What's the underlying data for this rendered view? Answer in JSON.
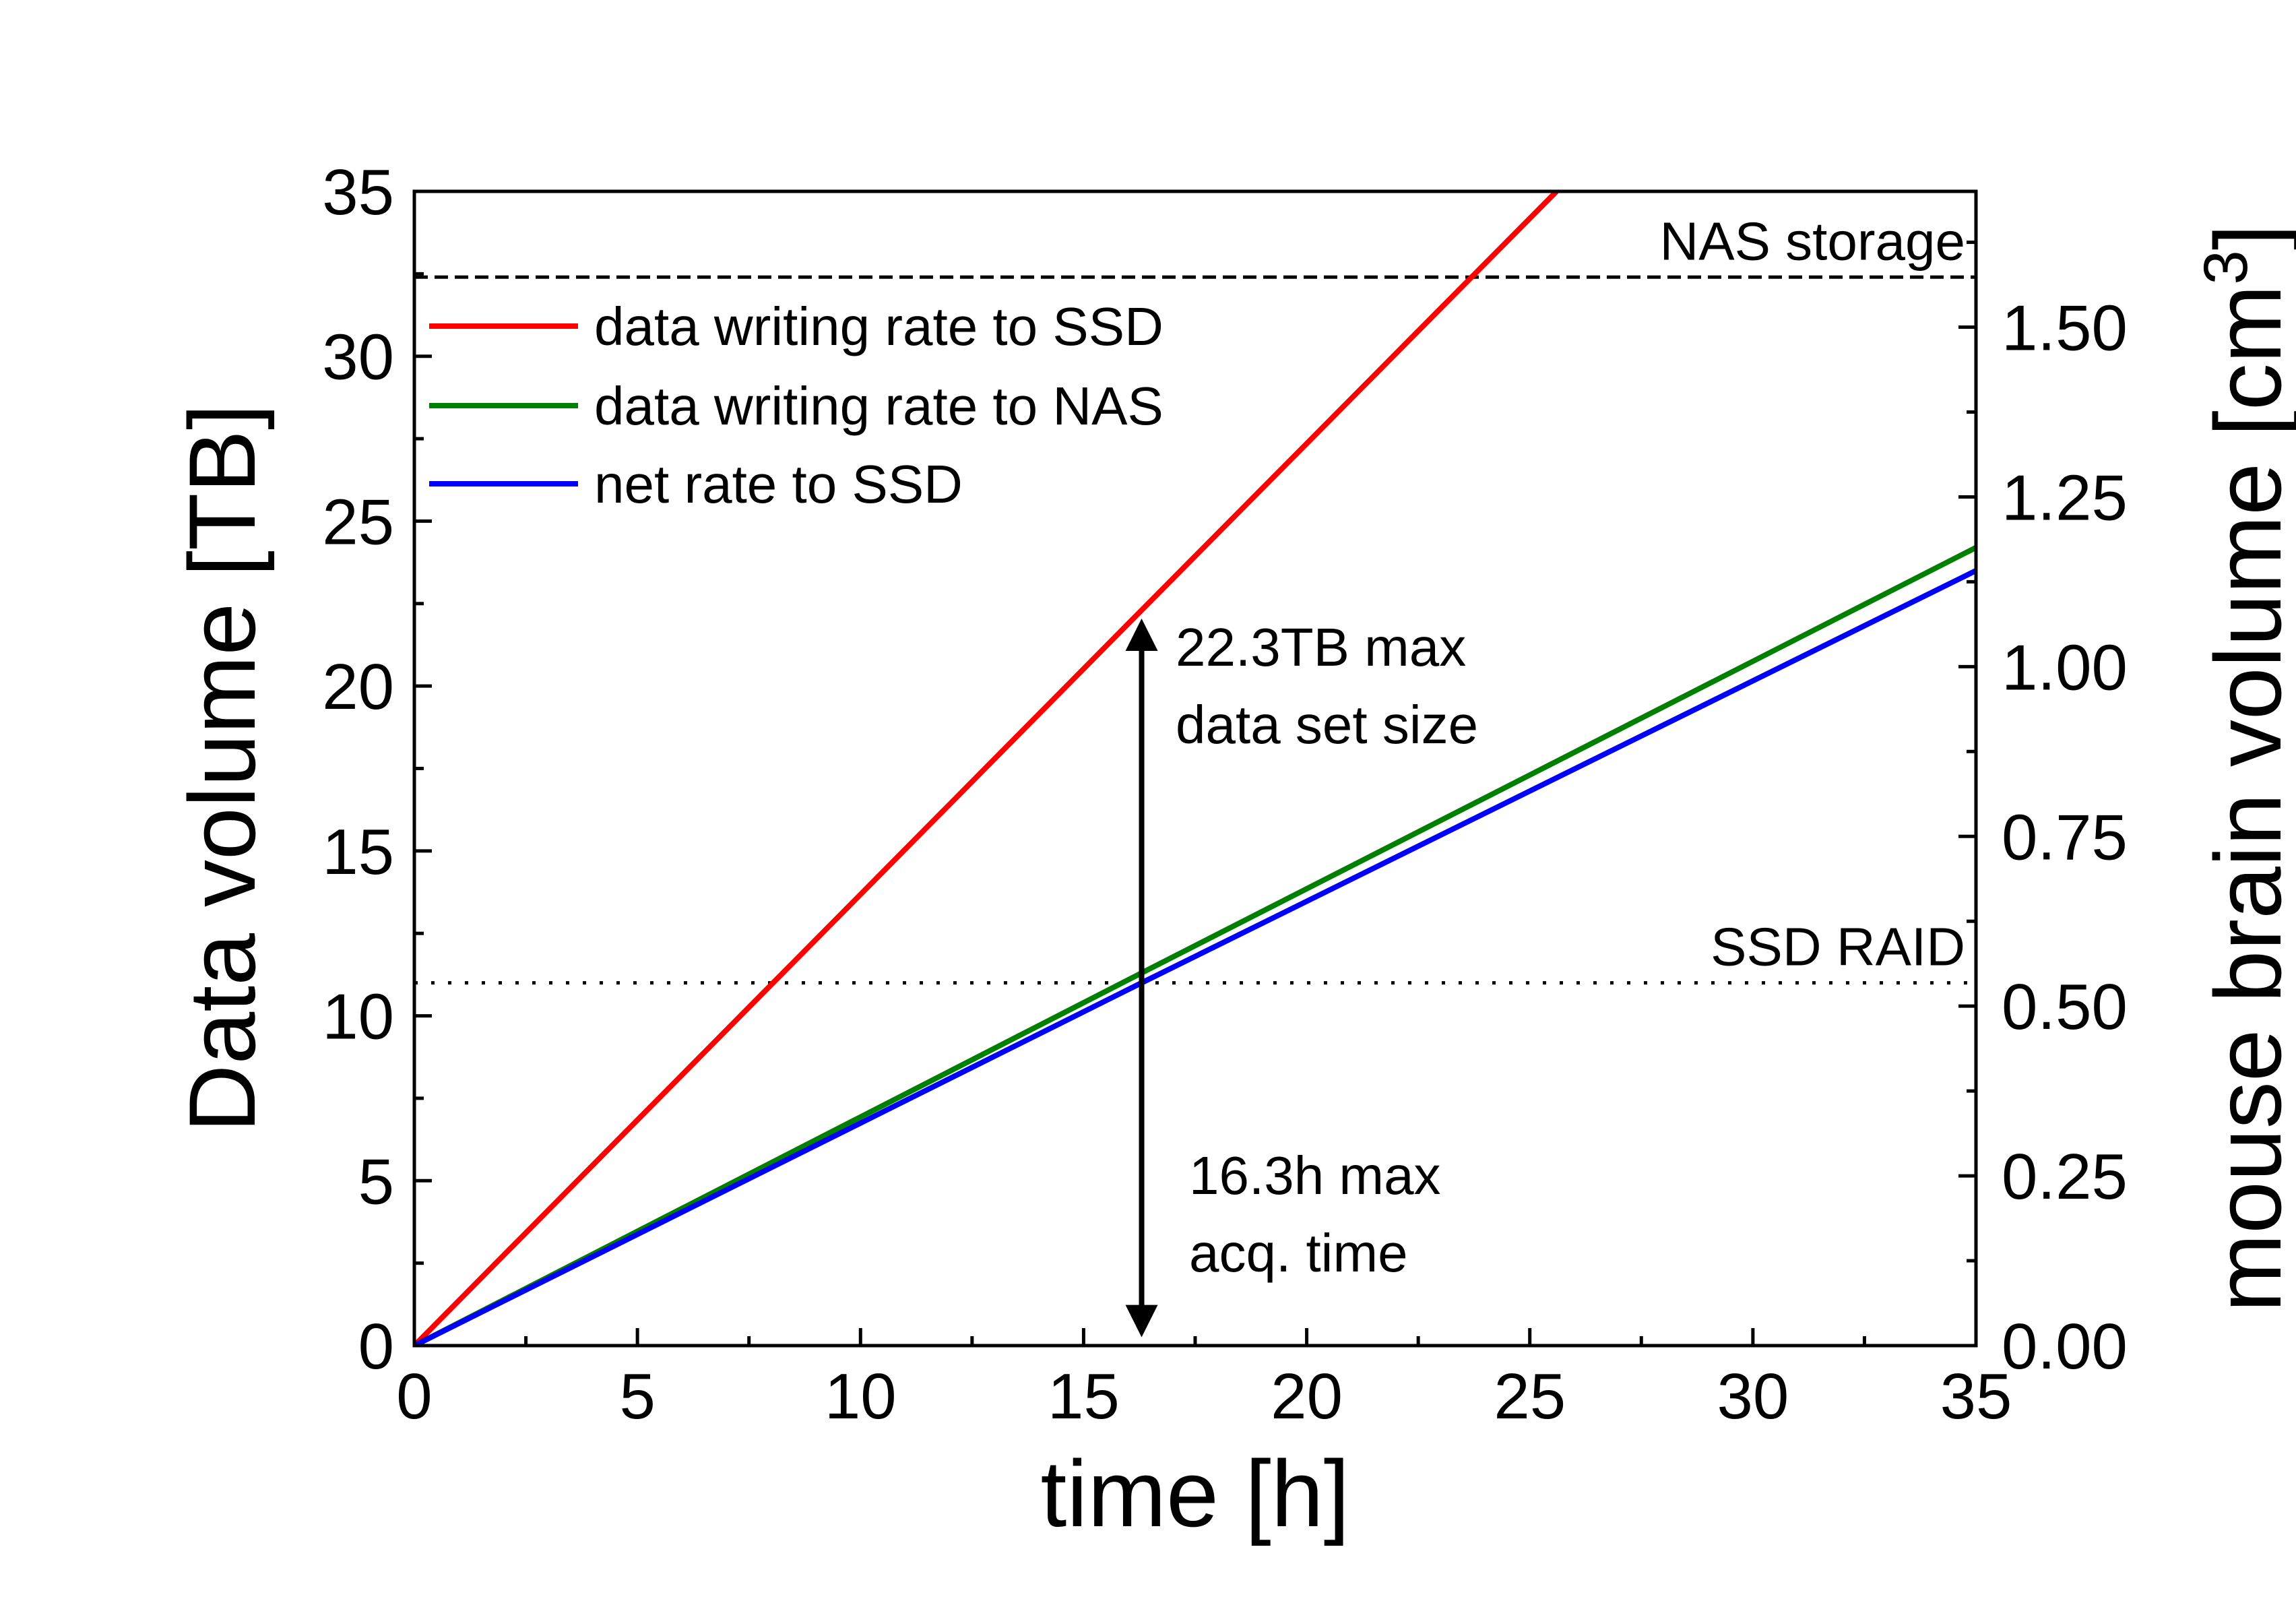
{
  "chart_data": {
    "type": "line",
    "xlabel": "time [h]",
    "ylabel": "Data volume [TB]",
    "y2label_main": "mouse brain volume [cm",
    "y2label_sup": "3",
    "y2label_end": "]",
    "xlim": [
      0,
      35
    ],
    "ylim": [
      0,
      35
    ],
    "y2lim": [
      0,
      1.7
    ],
    "x_ticks": [
      "0",
      "5",
      "10",
      "15",
      "20",
      "25",
      "30",
      "35"
    ],
    "x_tick_values": [
      0,
      5,
      10,
      15,
      20,
      25,
      30,
      35
    ],
    "y_ticks": [
      "0",
      "5",
      "10",
      "15",
      "20",
      "25",
      "30",
      "35"
    ],
    "y_tick_values": [
      0,
      5,
      10,
      15,
      20,
      25,
      30,
      35
    ],
    "y2_ticks": [
      "0.00",
      "0.25",
      "0.50",
      "0.75",
      "1.00",
      "1.25",
      "1.50"
    ],
    "y2_tick_values": [
      0,
      0.25,
      0.5,
      0.75,
      1.0,
      1.25,
      1.5
    ],
    "legend_position": "top-left",
    "grid": false,
    "series": [
      {
        "name": "data writing rate to SSD",
        "color": "#ff0000",
        "x": [
          0,
          16.3,
          25.6
        ],
        "y": [
          0,
          22.3,
          35
        ]
      },
      {
        "name": "data writing rate to NAS",
        "color": "#008000",
        "x": [
          0,
          16.3,
          35
        ],
        "y": [
          0,
          11.3,
          24.2
        ]
      },
      {
        "name": "net rate to SSD",
        "color": "#0000ff",
        "x": [
          0,
          16.3,
          35
        ],
        "y": [
          0,
          11.0,
          23.5
        ]
      }
    ],
    "reference_lines": [
      {
        "label": "NAS storage",
        "y": 32.4,
        "style": "dashed"
      },
      {
        "label": "SSD RAID",
        "y": 11.0,
        "style": "dotted"
      }
    ],
    "annotations": [
      {
        "lines": [
          "22.3TB max",
          "data set size"
        ],
        "x": 16.3,
        "y_from": 0,
        "y_to": 22.3
      },
      {
        "lines": [
          "16.3h max",
          "acq. time"
        ]
      }
    ]
  }
}
